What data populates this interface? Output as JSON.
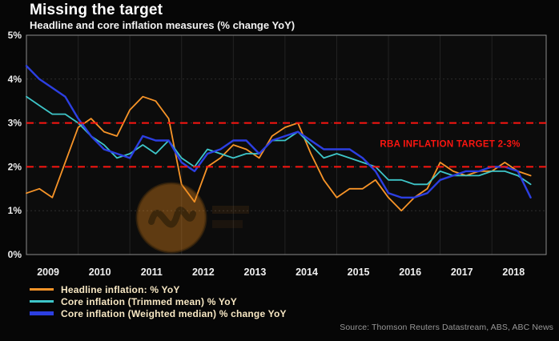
{
  "footer": {
    "source": "Source: Thomson Reuters Datastream, ABS, ABC News"
  },
  "colors": {
    "background": "#060606",
    "plot_background": "#0c0c0c",
    "plot_border": "#8c8c8c",
    "grid": "#2f2f2f",
    "target_red": "#fb1510",
    "legend_text": "#f7e7c3",
    "axis_text": "#ededed"
  },
  "chart_data": {
    "type": "line",
    "title": "Missing the target",
    "subtitle": "Headline and core inflation measures (% change YoY)",
    "xlabel": "",
    "ylabel": "",
    "xlim": [
      2009,
      2019.05
    ],
    "ylim": [
      0,
      5
    ],
    "grid": true,
    "legend_position": "bottom-left",
    "x_ticks": [
      {
        "value": 2009,
        "label": "2009"
      },
      {
        "value": 2010,
        "label": "2010"
      },
      {
        "value": 2011,
        "label": "2011"
      },
      {
        "value": 2012,
        "label": "2012"
      },
      {
        "value": 2013,
        "label": "2013"
      },
      {
        "value": 2014,
        "label": "2014"
      },
      {
        "value": 2015,
        "label": "2015"
      },
      {
        "value": 2016,
        "label": "2016"
      },
      {
        "value": 2017,
        "label": "2017"
      },
      {
        "value": 2018,
        "label": "2018"
      }
    ],
    "y_ticks": [
      {
        "value": 0,
        "label": "0%"
      },
      {
        "value": 1,
        "label": "1%"
      },
      {
        "value": 2,
        "label": "2%"
      },
      {
        "value": 3,
        "label": "3%"
      },
      {
        "value": 4,
        "label": "4%"
      },
      {
        "value": 5,
        "label": "5%"
      }
    ],
    "target_band": {
      "lines": [
        2,
        3
      ],
      "color": "#fb1510",
      "style": "dashed",
      "label": "RBA INFLATION TARGET 2-3%"
    },
    "annotation": {
      "text": "RBA INFLATION TARGET 2-3%",
      "color": "#fb1510",
      "x": 2018.55,
      "y": 2.45
    },
    "x": [
      2009,
      2009.25,
      2009.5,
      2009.75,
      2010,
      2010.25,
      2010.5,
      2010.75,
      2011,
      2011.25,
      2011.5,
      2011.75,
      2012,
      2012.25,
      2012.5,
      2012.75,
      2013,
      2013.25,
      2013.5,
      2013.75,
      2014,
      2014.25,
      2014.5,
      2014.75,
      2015,
      2015.25,
      2015.5,
      2015.75,
      2016,
      2016.25,
      2016.5,
      2016.75,
      2017,
      2017.25,
      2017.5,
      2017.75,
      2018,
      2018.25,
      2018.5,
      2018.75
    ],
    "series": [
      {
        "name": "Headline inflation: % YoY",
        "color": "#f79428",
        "values": [
          1.4,
          1.5,
          1.3,
          2.1,
          2.9,
          3.1,
          2.8,
          2.7,
          3.3,
          3.6,
          3.5,
          3.1,
          1.6,
          1.2,
          2.0,
          2.2,
          2.5,
          2.4,
          2.2,
          2.7,
          2.9,
          3.0,
          2.3,
          1.7,
          1.3,
          1.5,
          1.5,
          1.7,
          1.3,
          1.0,
          1.3,
          1.5,
          2.1,
          1.9,
          1.8,
          1.9,
          1.9,
          2.1,
          1.9,
          1.8
        ]
      },
      {
        "name": "Core inflation (Trimmed mean) % YoY",
        "color": "#3ec6c9",
        "values": [
          3.6,
          3.4,
          3.2,
          3.2,
          3.0,
          2.7,
          2.5,
          2.2,
          2.3,
          2.5,
          2.3,
          2.6,
          2.2,
          2.0,
          2.4,
          2.3,
          2.2,
          2.3,
          2.3,
          2.6,
          2.6,
          2.8,
          2.5,
          2.2,
          2.3,
          2.2,
          2.1,
          2.0,
          1.7,
          1.7,
          1.6,
          1.6,
          1.9,
          1.8,
          1.8,
          1.8,
          1.9,
          1.9,
          1.8,
          1.6
        ]
      },
      {
        "name": "Core inflation (Weighted median) % change YoY",
        "color": "#2c3fe2",
        "values": [
          4.3,
          4.0,
          3.8,
          3.6,
          3.1,
          2.7,
          2.4,
          2.3,
          2.2,
          2.7,
          2.6,
          2.6,
          2.1,
          1.9,
          2.3,
          2.4,
          2.6,
          2.6,
          2.3,
          2.6,
          2.7,
          2.8,
          2.6,
          2.4,
          2.4,
          2.4,
          2.2,
          1.9,
          1.4,
          1.3,
          1.3,
          1.4,
          1.7,
          1.8,
          1.9,
          1.9,
          2.0,
          2.0,
          1.9,
          1.3
        ]
      }
    ]
  }
}
